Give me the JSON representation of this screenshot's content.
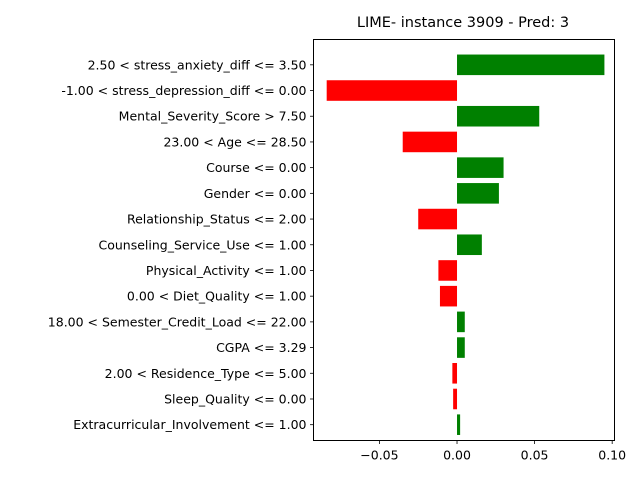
{
  "chart_data": {
    "type": "bar",
    "orientation": "horizontal",
    "title": "LIME- instance 3909 - Pred: 3",
    "xlabel": "",
    "ylabel": "",
    "grid": false,
    "legend": "none",
    "xlim": [
      -0.0925,
      0.1015
    ],
    "xticks": [
      -0.05,
      0.0,
      0.05,
      0.1
    ],
    "xtick_labels": [
      "−0.05",
      "0.00",
      "0.05",
      "0.10"
    ],
    "positive_color": "#008000",
    "negative_color": "#ff0000",
    "categories": [
      "2.50 < stress_anxiety_diff <= 3.50",
      "-1.00 < stress_depression_diff <= 0.00",
      "Mental_Severity_Score > 7.50",
      "23.00 < Age <= 28.50",
      "Course <= 0.00",
      "Gender <= 0.00",
      "Relationship_Status <= 2.00",
      "Counseling_Service_Use <= 1.00",
      "Physical_Activity <= 1.00",
      "0.00 < Diet_Quality <= 1.00",
      "18.00 < Semester_Credit_Load <= 22.00",
      "CGPA <= 3.29",
      "2.00 < Residence_Type <= 5.00",
      "Sleep_Quality <= 0.00",
      "Extracurricular_Involvement <= 1.00"
    ],
    "values": [
      0.095,
      -0.084,
      0.053,
      -0.035,
      0.03,
      0.027,
      -0.025,
      0.016,
      -0.012,
      -0.011,
      0.005,
      0.005,
      -0.003,
      -0.0025,
      0.002
    ]
  }
}
